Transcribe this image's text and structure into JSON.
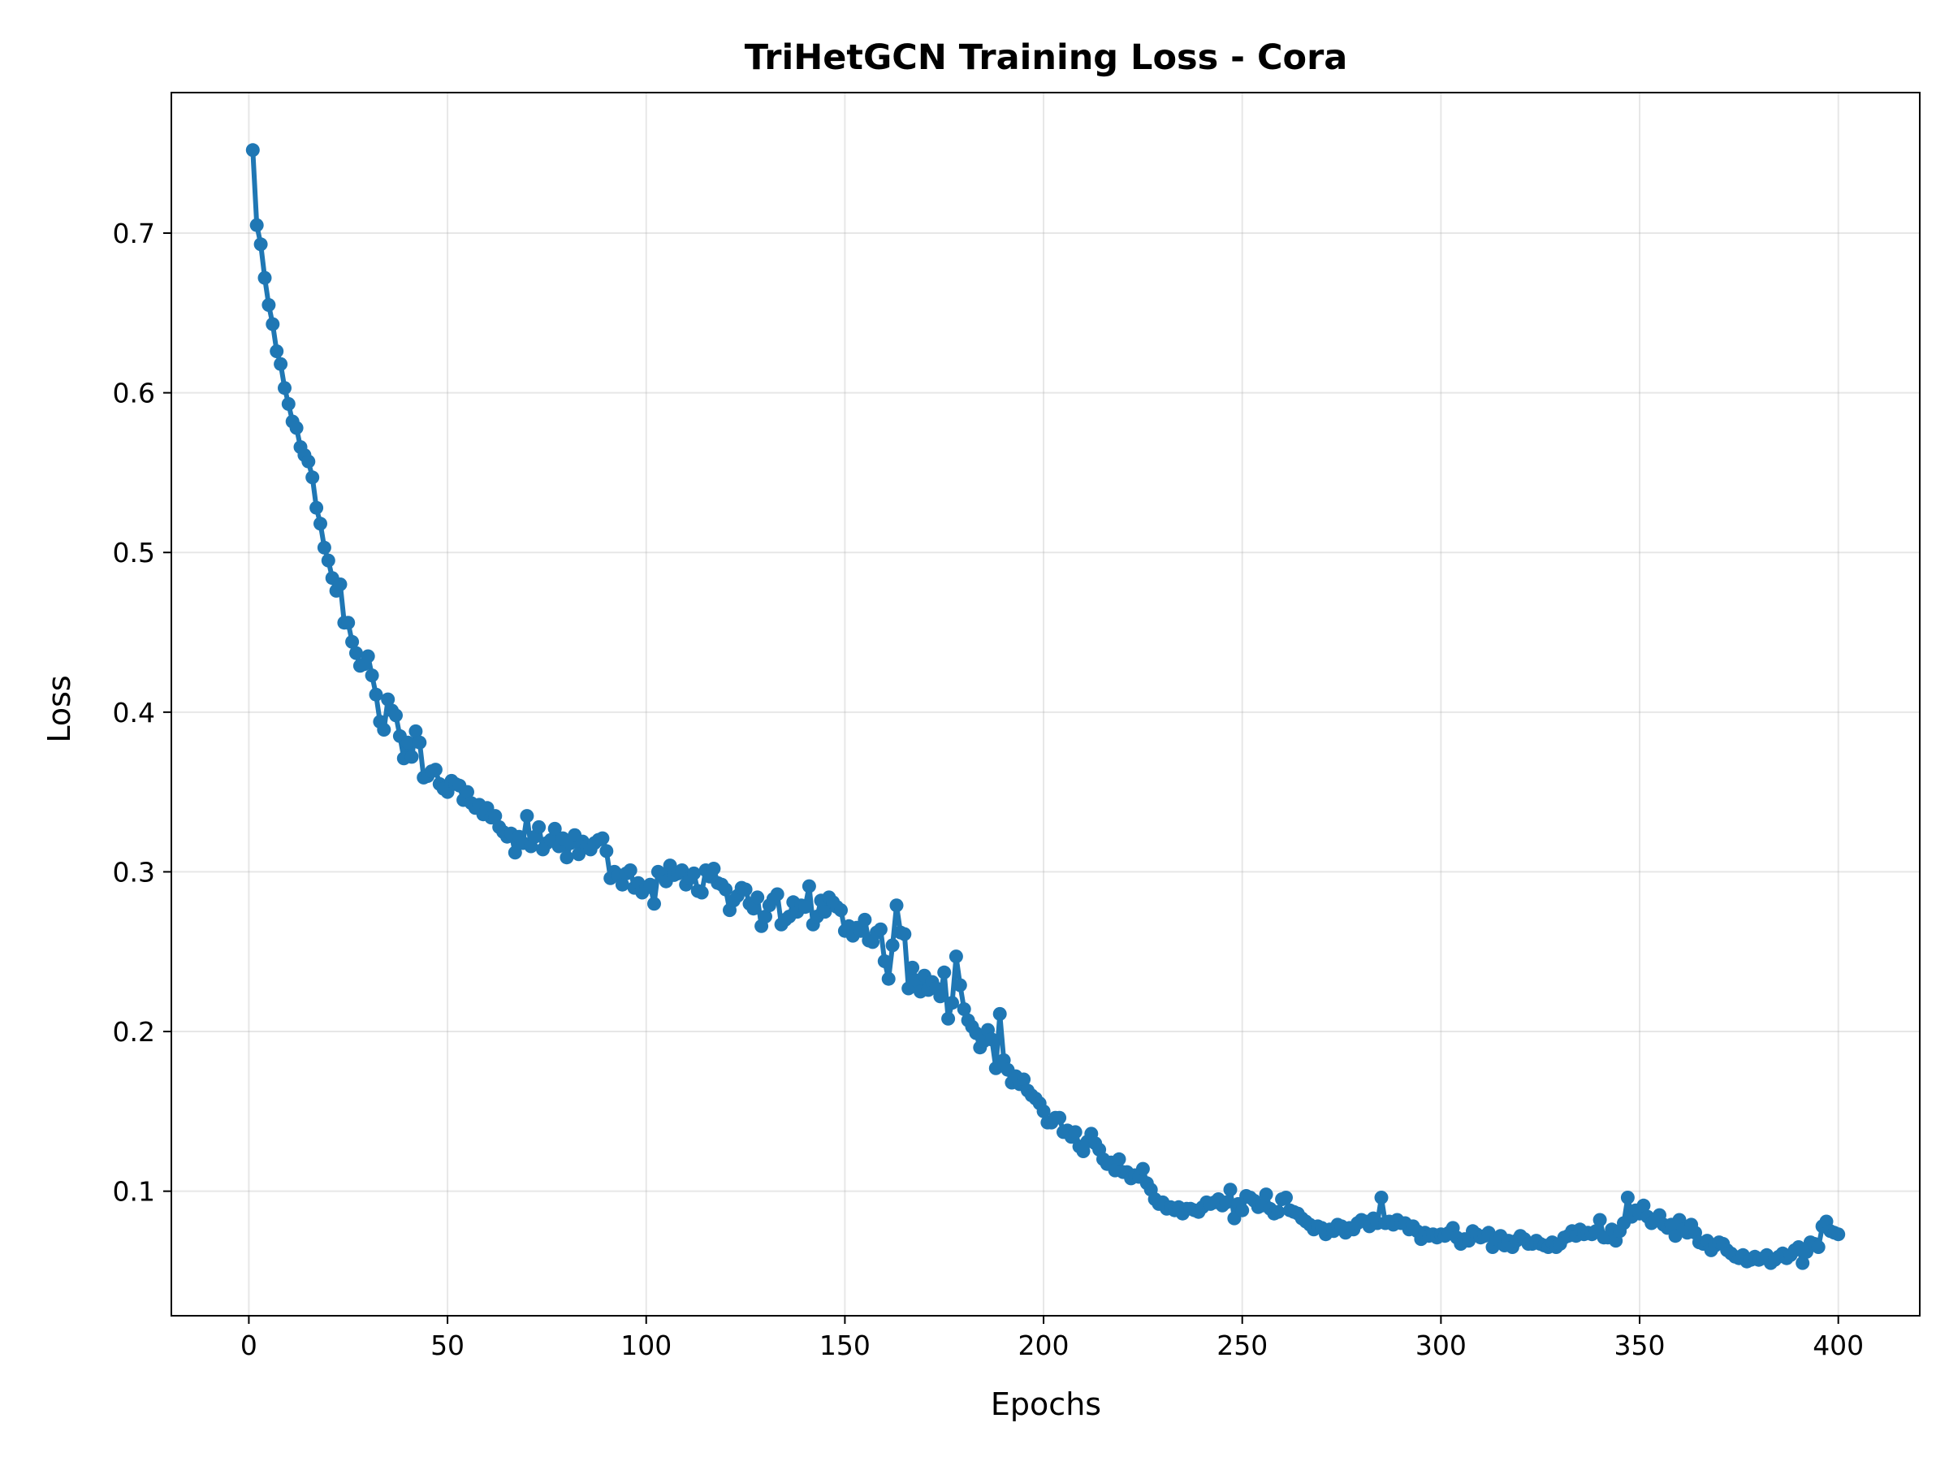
{
  "chart_data": {
    "type": "line",
    "title": "TriHetGCN Training Loss - Cora",
    "xlabel": "Epochs",
    "ylabel": "Loss",
    "xlim": [
      -19.5,
      420.5
    ],
    "ylim": [
      0.022,
      0.788
    ],
    "xticks": [
      0,
      50,
      100,
      150,
      200,
      250,
      300,
      350,
      400
    ],
    "yticks": [
      0.1,
      0.2,
      0.3,
      0.4,
      0.5,
      0.6,
      0.7
    ],
    "xtick_labels": [
      "0",
      "50",
      "100",
      "150",
      "200",
      "250",
      "300",
      "350",
      "400"
    ],
    "ytick_labels": [
      "0.1",
      "0.2",
      "0.3",
      "0.4",
      "0.5",
      "0.6",
      "0.7"
    ],
    "grid": true,
    "markers": true,
    "series": [
      {
        "color": "#1f77b4",
        "x_start": 1,
        "x_step": 1,
        "values": [
          0.752,
          0.705,
          0.693,
          0.672,
          0.655,
          0.643,
          0.626,
          0.618,
          0.603,
          0.593,
          0.582,
          0.578,
          0.566,
          0.561,
          0.557,
          0.547,
          0.528,
          0.518,
          0.503,
          0.495,
          0.484,
          0.476,
          0.48,
          0.456,
          0.456,
          0.444,
          0.437,
          0.429,
          0.43,
          0.435,
          0.423,
          0.411,
          0.394,
          0.389,
          0.408,
          0.401,
          0.398,
          0.385,
          0.371,
          0.381,
          0.372,
          0.388,
          0.381,
          0.359,
          0.36,
          0.363,
          0.364,
          0.355,
          0.352,
          0.35,
          0.357,
          0.355,
          0.354,
          0.345,
          0.35,
          0.343,
          0.34,
          0.342,
          0.336,
          0.34,
          0.334,
          0.335,
          0.328,
          0.325,
          0.322,
          0.324,
          0.312,
          0.322,
          0.318,
          0.335,
          0.316,
          0.322,
          0.328,
          0.314,
          0.318,
          0.32,
          0.327,
          0.316,
          0.321,
          0.309,
          0.318,
          0.323,
          0.311,
          0.319,
          0.316,
          0.314,
          0.318,
          0.32,
          0.321,
          0.313,
          0.296,
          0.3,
          0.298,
          0.292,
          0.299,
          0.301,
          0.29,
          0.293,
          0.287,
          0.29,
          0.292,
          0.28,
          0.3,
          0.298,
          0.294,
          0.304,
          0.298,
          0.299,
          0.301,
          0.292,
          0.296,
          0.299,
          0.288,
          0.287,
          0.301,
          0.297,
          0.302,
          0.293,
          0.292,
          0.289,
          0.276,
          0.282,
          0.285,
          0.29,
          0.289,
          0.28,
          0.277,
          0.284,
          0.266,
          0.272,
          0.279,
          0.283,
          0.286,
          0.267,
          0.27,
          0.272,
          0.281,
          0.275,
          0.279,
          0.278,
          0.291,
          0.267,
          0.272,
          0.282,
          0.275,
          0.284,
          0.281,
          0.278,
          0.276,
          0.263,
          0.266,
          0.26,
          0.265,
          0.263,
          0.27,
          0.257,
          0.256,
          0.262,
          0.264,
          0.244,
          0.233,
          0.254,
          0.279,
          0.262,
          0.261,
          0.227,
          0.24,
          0.232,
          0.225,
          0.235,
          0.226,
          0.231,
          0.227,
          0.222,
          0.237,
          0.208,
          0.218,
          0.247,
          0.229,
          0.214,
          0.207,
          0.203,
          0.199,
          0.19,
          0.194,
          0.201,
          0.195,
          0.177,
          0.211,
          0.182,
          0.176,
          0.168,
          0.172,
          0.167,
          0.17,
          0.163,
          0.16,
          0.158,
          0.155,
          0.15,
          0.143,
          0.143,
          0.146,
          0.146,
          0.137,
          0.138,
          0.134,
          0.137,
          0.128,
          0.125,
          0.131,
          0.136,
          0.13,
          0.126,
          0.12,
          0.117,
          0.118,
          0.113,
          0.12,
          0.112,
          0.112,
          0.108,
          0.11,
          0.109,
          0.114,
          0.105,
          0.101,
          0.095,
          0.092,
          0.093,
          0.089,
          0.09,
          0.088,
          0.09,
          0.086,
          0.089,
          0.089,
          0.088,
          0.087,
          0.09,
          0.093,
          0.092,
          0.093,
          0.095,
          0.091,
          0.093,
          0.101,
          0.083,
          0.092,
          0.088,
          0.097,
          0.096,
          0.094,
          0.09,
          0.091,
          0.098,
          0.089,
          0.086,
          0.087,
          0.095,
          0.096,
          0.088,
          0.087,
          0.086,
          0.083,
          0.081,
          0.079,
          0.076,
          0.078,
          0.077,
          0.073,
          0.076,
          0.075,
          0.079,
          0.078,
          0.074,
          0.077,
          0.076,
          0.08,
          0.082,
          0.081,
          0.078,
          0.083,
          0.08,
          0.096,
          0.08,
          0.081,
          0.079,
          0.082,
          0.08,
          0.08,
          0.076,
          0.078,
          0.075,
          0.07,
          0.074,
          0.072,
          0.073,
          0.071,
          0.073,
          0.072,
          0.074,
          0.077,
          0.071,
          0.067,
          0.07,
          0.069,
          0.075,
          0.073,
          0.071,
          0.072,
          0.074,
          0.065,
          0.07,
          0.072,
          0.066,
          0.069,
          0.065,
          0.069,
          0.072,
          0.07,
          0.067,
          0.067,
          0.069,
          0.067,
          0.066,
          0.065,
          0.068,
          0.065,
          0.067,
          0.071,
          0.072,
          0.075,
          0.072,
          0.076,
          0.073,
          0.074,
          0.073,
          0.075,
          0.082,
          0.071,
          0.071,
          0.076,
          0.069,
          0.075,
          0.08,
          0.096,
          0.084,
          0.088,
          0.086,
          0.091,
          0.084,
          0.08,
          0.082,
          0.085,
          0.079,
          0.077,
          0.079,
          0.072,
          0.082,
          0.076,
          0.074,
          0.079,
          0.074,
          0.068,
          0.067,
          0.069,
          0.063,
          0.066,
          0.068,
          0.067,
          0.063,
          0.061,
          0.059,
          0.058,
          0.06,
          0.056,
          0.057,
          0.059,
          0.057,
          0.058,
          0.06,
          0.055,
          0.057,
          0.059,
          0.061,
          0.058,
          0.06,
          0.063,
          0.065,
          0.055,
          0.062,
          0.068,
          0.067,
          0.065,
          0.078,
          0.081,
          0.075,
          0.074,
          0.073
        ]
      }
    ]
  }
}
